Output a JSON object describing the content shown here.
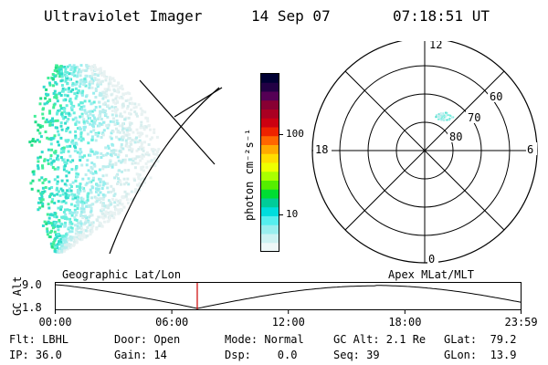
{
  "header": {
    "instrument": "Ultraviolet Imager",
    "date": "14 Sep 07",
    "time": "07:18:51 UT"
  },
  "colorbar": {
    "unit_label": "photon cm⁻²s⁻¹",
    "ticks": [
      {
        "label": "100",
        "value": 100
      },
      {
        "label": "10",
        "value": 10
      }
    ],
    "colors": [
      "#000033",
      "#220044",
      "#550055",
      "#880033",
      "#aa0022",
      "#cc0011",
      "#ee2200",
      "#ff6600",
      "#ffaa00",
      "#ffdd00",
      "#eeff00",
      "#aaff00",
      "#55ee00",
      "#00dd33",
      "#00cc99",
      "#00dddd",
      "#55eeee",
      "#99eeee",
      "#ccf2f2",
      "#eef8f8"
    ]
  },
  "polar_plot": {
    "mlt_labels": {
      "top": "12",
      "left": "18",
      "right": "6",
      "bottom": "0"
    },
    "lat_labels": [
      {
        "label": "60",
        "lat": 60
      },
      {
        "label": "70",
        "lat": 70
      },
      {
        "label": "80",
        "lat": 80
      }
    ]
  },
  "timeline": {
    "y_axis_label": "GC Alt",
    "y_ticks": [
      {
        "label": "9.0",
        "value": 9.0
      },
      {
        "label": "1.8",
        "value": 1.8
      }
    ],
    "left_caption": "Geographic Lat/Lon",
    "right_caption": "Apex MLat/MLT",
    "x_ticks": [
      {
        "label": "00:00",
        "hours": 0
      },
      {
        "label": "06:00",
        "hours": 6
      },
      {
        "label": "12:00",
        "hours": 12
      },
      {
        "label": "18:00",
        "hours": 18
      },
      {
        "label": "23:59",
        "hours": 23.98
      }
    ],
    "current_hours": 7.31,
    "marker_color": "#cc0000"
  },
  "info": {
    "filter": "Flt: LBHL",
    "door": "Door: Open",
    "mode": "Mode: Normal",
    "gc_alt": "GC Alt: 2.1 Re",
    "glat": "GLat:  79.2",
    "ip": "IP: 36.0",
    "gain": "Gain: 14",
    "dsp": "Dsp:    0.0",
    "seq": "Seq: 39",
    "glon": "GLon:  13.9"
  }
}
